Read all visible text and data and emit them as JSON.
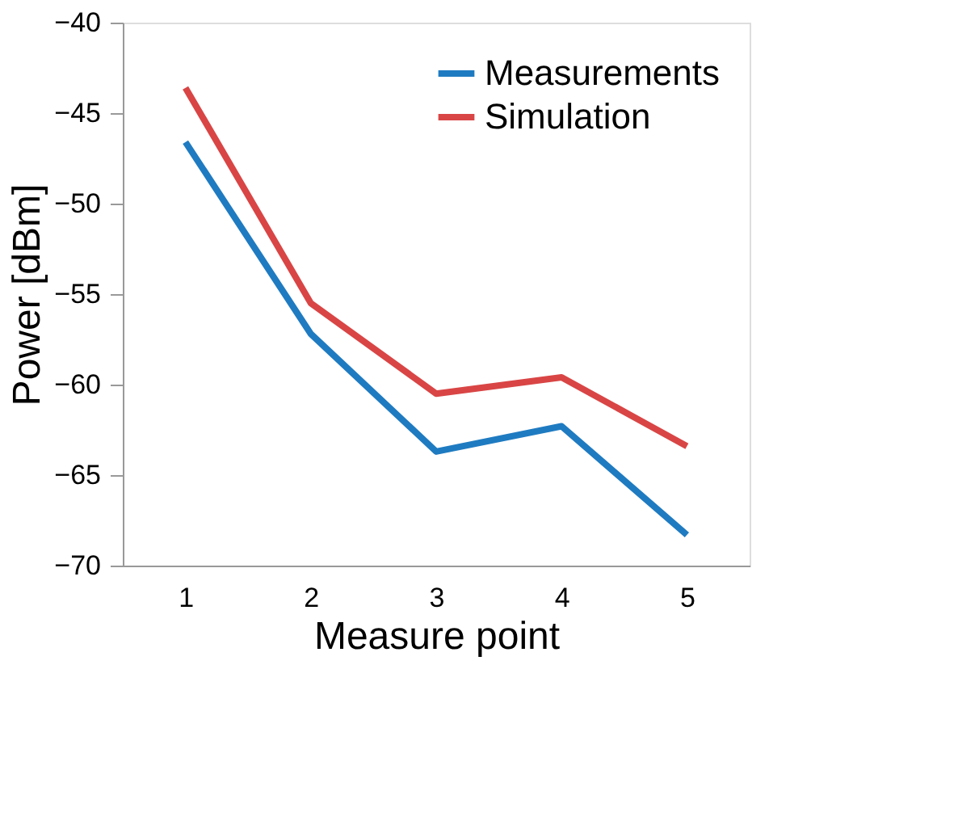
{
  "chart_data": {
    "type": "line",
    "xlabel": "Measure point",
    "ylabel": "Power [dBm]",
    "categories": [
      "1",
      "2",
      "3",
      "4",
      "5"
    ],
    "series": [
      {
        "name": "Measurements",
        "color": "#1f7bc1",
        "values": [
          -46.6,
          -57.2,
          -63.7,
          -62.3,
          -68.3
        ]
      },
      {
        "name": "Simulation",
        "color": "#d94545",
        "values": [
          -43.6,
          -55.5,
          -60.5,
          -59.6,
          -63.4
        ]
      }
    ],
    "ylim": [
      -70,
      -40
    ],
    "yticks": [
      -70,
      -65,
      -60,
      -55,
      -50,
      -45,
      -40
    ],
    "grid": false,
    "legend": "top right",
    "marker": "none",
    "line_style": "solid"
  }
}
